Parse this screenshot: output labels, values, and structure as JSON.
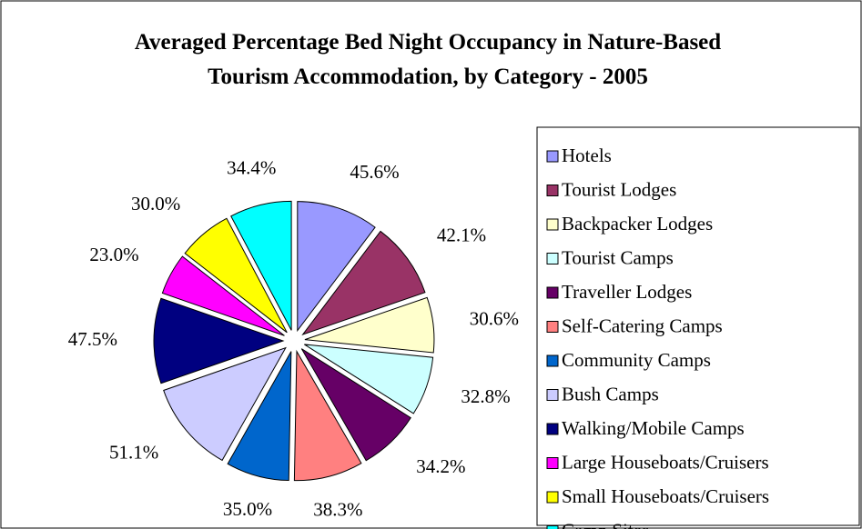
{
  "chart_data": {
    "type": "pie",
    "title": "Averaged Percentage Bed Night Occupancy in Nature-Based Tourism Accommodation, by Category - 2005",
    "categories": [
      "Hotels",
      "Tourist Lodges",
      "Backpacker Lodges",
      "Tourist Camps",
      "Traveller Lodges",
      "Self-Catering Camps",
      "Community Camps",
      "Bush Camps",
      "Walking/Mobile Camps",
      "Large Houseboats/Cruisers",
      "Small Houseboats/Cruisers",
      "Camp Sites"
    ],
    "values": [
      45.6,
      42.1,
      30.6,
      32.8,
      34.2,
      38.3,
      35.0,
      51.1,
      47.5,
      23.0,
      30.0,
      34.4
    ],
    "value_labels": [
      "45.6%",
      "42.1%",
      "30.6%",
      "32.8%",
      "34.2%",
      "38.3%",
      "35.0%",
      "51.1%",
      "47.5%",
      "23.0%",
      "30.0%",
      "34.4%"
    ],
    "colors": [
      "#9999ff",
      "#993366",
      "#ffffcc",
      "#ccffff",
      "#660066",
      "#ff8080",
      "#0066cc",
      "#ccccff",
      "#000080",
      "#ff00ff",
      "#ffff00",
      "#00ffff"
    ],
    "legend": "right"
  }
}
